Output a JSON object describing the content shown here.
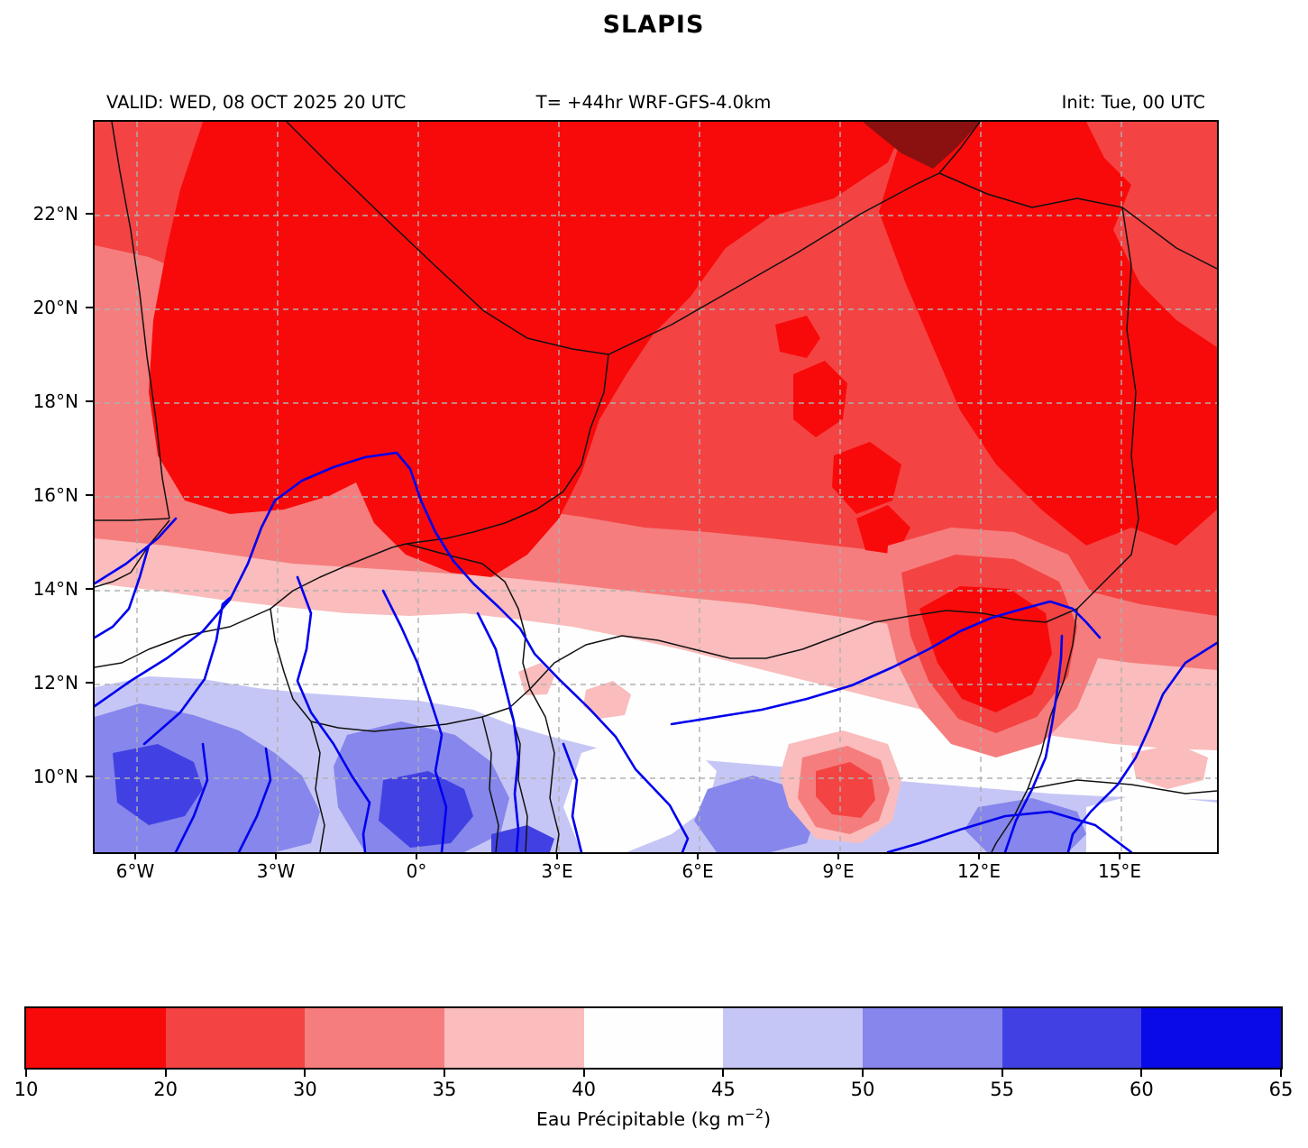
{
  "title": "SLAPIS",
  "header": {
    "valid": "VALID: WED, 08 OCT 2025 20 UTC",
    "model": "T= +44hr WRF-GFS-4.0km",
    "init": "Init: Tue, 00 UTC"
  },
  "axes": {
    "lat_ticks": [
      "22°N",
      "20°N",
      "18°N",
      "16°N",
      "14°N",
      "12°N",
      "10°N"
    ],
    "lon_ticks": [
      "6°W",
      "3°W",
      "0°",
      "3°E",
      "6°E",
      "9°E",
      "12°E",
      "15°E"
    ]
  },
  "palette": {
    "c1": "#f90a0a",
    "c2": "#f44343",
    "c3": "#f67d7d",
    "c4": "#fabcbc",
    "c5": "#fefefe",
    "c6": "#c6c6f6",
    "c7": "#8686ec",
    "c8": "#4141e3",
    "c9": "#0a0ae8",
    "under": "#8b1111",
    "border": "#111111",
    "river": "#0000ee",
    "grid": "#b0b0b0"
  },
  "colorbar": {
    "tick_labels": [
      "10",
      "20",
      "30",
      "35",
      "40",
      "45",
      "50",
      "55",
      "60",
      "65"
    ],
    "segment_colors": [
      "c1",
      "c2",
      "c3",
      "c4",
      "c5",
      "c6",
      "c7",
      "c8",
      "c9"
    ],
    "label_prefix": "Eau Précipitable (kg m",
    "label_exp": "−2",
    "label_suffix": ")"
  },
  "chart_data": {
    "type": "heatmap",
    "title": "SLAPIS",
    "annotations": [
      "VALID: WED, 08 OCT 2025 20 UTC",
      "T= +44hr WRF-GFS-4.0km",
      "Init: Tue, 00 UTC"
    ],
    "variable": "Eau Précipitable",
    "units": "kg m-2",
    "levels": [
      10,
      20,
      30,
      35,
      40,
      45,
      50,
      55,
      60,
      65
    ],
    "colors": [
      "#f90a0a",
      "#f44343",
      "#f67d7d",
      "#fabcbc",
      "#fefefe",
      "#c6c6f6",
      "#8686ec",
      "#4141e3",
      "#0a0ae8"
    ],
    "under_color": "#8b1111",
    "lon_range": [
      -6.9,
      17.0
    ],
    "lat_range": [
      8.4,
      24.0
    ],
    "x_ticks_deg": [
      -6,
      -3,
      0,
      3,
      6,
      9,
      12,
      15
    ],
    "y_ticks_deg": [
      22,
      20,
      18,
      16,
      14,
      12,
      10
    ],
    "grid": "dashed gray, 2° lat x 3° lon",
    "legend_position": "horizontal colorbar, bottom",
    "pattern": "Values < 20 (bright red) over the Sahara in the north with a dark-red <10 patch near 9E/23.8N; 20-30 red band across the Sahel; salmon 30-35 and pink 35-40 bands near 13-15N; white 40-45 band near 11-13N; lavender 45-50 and blue-purple 50-55 patches south of 12N; small 55-60 patches in the far south-west; dry red maximum around Lake Chad (12-14E, 11.5-13.5N) and a red spot near 9E/9.5N"
  }
}
